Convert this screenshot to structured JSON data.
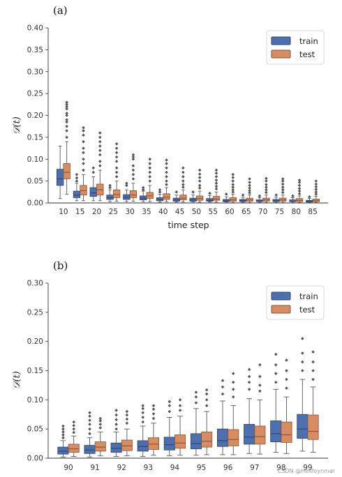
{
  "colors": {
    "train": "#4c6fb0",
    "test": "#d98c5f",
    "flier": "#555555",
    "whisker": "#555555"
  },
  "watermark": "CSDN @Hellfeynmar",
  "chart_data": [
    {
      "panel": "(a)",
      "type": "box",
      "ylabel": "𝒟(t)",
      "xlabel": "time step",
      "ylim": [
        0,
        0.4
      ],
      "yticks": [
        "0.00",
        "0.05",
        "0.10",
        "0.15",
        "0.20",
        "0.25",
        "0.30",
        "0.35",
        "0.40"
      ],
      "legend": {
        "position": "top-right",
        "entries": [
          "train",
          "test"
        ]
      },
      "categories": [
        "10",
        "15",
        "20",
        "25",
        "30",
        "35",
        "40",
        "45",
        "50",
        "55",
        "60",
        "65",
        "70",
        "75",
        "80",
        "85"
      ],
      "series": [
        {
          "name": "train",
          "boxes": [
            {
              "lo": 0.01,
              "q1": 0.04,
              "med": 0.055,
              "q3": 0.077,
              "hi": 0.13,
              "fliers": []
            },
            {
              "lo": 0.005,
              "q1": 0.012,
              "med": 0.018,
              "q3": 0.027,
              "hi": 0.045,
              "fliers": [
                0.05,
                0.057,
                0.065
              ]
            },
            {
              "lo": 0.005,
              "q1": 0.015,
              "med": 0.023,
              "q3": 0.035,
              "hi": 0.06,
              "fliers": [
                0.07,
                0.08
              ]
            },
            {
              "lo": 0.003,
              "q1": 0.008,
              "med": 0.012,
              "q3": 0.018,
              "hi": 0.03,
              "fliers": [
                0.035,
                0.04
              ]
            },
            {
              "lo": 0.003,
              "q1": 0.008,
              "med": 0.013,
              "q3": 0.019,
              "hi": 0.03,
              "fliers": [
                0.04,
                0.045
              ]
            },
            {
              "lo": 0.003,
              "q1": 0.007,
              "med": 0.011,
              "q3": 0.016,
              "hi": 0.027,
              "fliers": [
                0.03,
                0.035
              ]
            },
            {
              "lo": 0.002,
              "q1": 0.005,
              "med": 0.008,
              "q3": 0.012,
              "hi": 0.02,
              "fliers": [
                0.025,
                0.03
              ]
            },
            {
              "lo": 0.002,
              "q1": 0.004,
              "med": 0.007,
              "q3": 0.011,
              "hi": 0.018,
              "fliers": [
                0.025
              ]
            },
            {
              "lo": 0.002,
              "q1": 0.004,
              "med": 0.007,
              "q3": 0.011,
              "hi": 0.018,
              "fliers": [
                0.025
              ]
            },
            {
              "lo": 0.002,
              "q1": 0.004,
              "med": 0.006,
              "q3": 0.01,
              "hi": 0.017,
              "fliers": [
                0.022
              ]
            },
            {
              "lo": 0.002,
              "q1": 0.003,
              "med": 0.005,
              "q3": 0.008,
              "hi": 0.014,
              "fliers": [
                0.02
              ]
            },
            {
              "lo": 0.001,
              "q1": 0.003,
              "med": 0.005,
              "q3": 0.008,
              "hi": 0.013,
              "fliers": [
                0.018
              ]
            },
            {
              "lo": 0.001,
              "q1": 0.003,
              "med": 0.005,
              "q3": 0.007,
              "hi": 0.012,
              "fliers": [
                0.016
              ]
            },
            {
              "lo": 0.001,
              "q1": 0.003,
              "med": 0.005,
              "q3": 0.008,
              "hi": 0.013,
              "fliers": [
                0.018
              ]
            },
            {
              "lo": 0.001,
              "q1": 0.003,
              "med": 0.004,
              "q3": 0.007,
              "hi": 0.012,
              "fliers": [
                0.016
              ]
            },
            {
              "lo": 0.001,
              "q1": 0.002,
              "med": 0.004,
              "q3": 0.006,
              "hi": 0.01,
              "fliers": [
                0.014
              ]
            }
          ]
        },
        {
          "name": "test",
          "boxes": [
            {
              "lo": 0.02,
              "q1": 0.055,
              "med": 0.07,
              "q3": 0.09,
              "hi": 0.14,
              "fliers": [
                0.15,
                0.165,
                0.175,
                0.185,
                0.19,
                0.2,
                0.205,
                0.215,
                0.22,
                0.225,
                0.23
              ]
            },
            {
              "lo": 0.005,
              "q1": 0.018,
              "med": 0.028,
              "q3": 0.04,
              "hi": 0.065,
              "fliers": [
                0.075,
                0.09,
                0.1,
                0.115,
                0.125,
                0.14,
                0.155,
                0.165,
                0.172
              ]
            },
            {
              "lo": 0.005,
              "q1": 0.018,
              "med": 0.03,
              "q3": 0.043,
              "hi": 0.075,
              "fliers": [
                0.085,
                0.095,
                0.11,
                0.12,
                0.13,
                0.14,
                0.15,
                0.16
              ]
            },
            {
              "lo": 0.004,
              "q1": 0.012,
              "med": 0.019,
              "q3": 0.03,
              "hi": 0.05,
              "fliers": [
                0.06,
                0.07,
                0.08,
                0.095,
                0.105,
                0.115,
                0.125,
                0.135
              ]
            },
            {
              "lo": 0.004,
              "q1": 0.012,
              "med": 0.018,
              "q3": 0.028,
              "hi": 0.045,
              "fliers": [
                0.055,
                0.065,
                0.075,
                0.085,
                0.1,
                0.105,
                0.11
              ]
            },
            {
              "lo": 0.003,
              "q1": 0.01,
              "med": 0.016,
              "q3": 0.024,
              "hi": 0.04,
              "fliers": [
                0.05,
                0.06,
                0.07,
                0.08,
                0.09,
                0.1
              ]
            },
            {
              "lo": 0.003,
              "q1": 0.008,
              "med": 0.013,
              "q3": 0.021,
              "hi": 0.035,
              "fliers": [
                0.042,
                0.05,
                0.06,
                0.07,
                0.08,
                0.09,
                0.098
              ]
            },
            {
              "lo": 0.002,
              "q1": 0.007,
              "med": 0.011,
              "q3": 0.018,
              "hi": 0.03,
              "fliers": [
                0.036,
                0.042,
                0.05,
                0.06,
                0.07,
                0.08
              ]
            },
            {
              "lo": 0.002,
              "q1": 0.006,
              "med": 0.01,
              "q3": 0.016,
              "hi": 0.027,
              "fliers": [
                0.034,
                0.04,
                0.05,
                0.058,
                0.066,
                0.075
              ]
            },
            {
              "lo": 0.002,
              "q1": 0.006,
              "med": 0.009,
              "q3": 0.015,
              "hi": 0.025,
              "fliers": [
                0.032,
                0.038,
                0.045,
                0.052,
                0.06,
                0.068,
                0.075
              ]
            },
            {
              "lo": 0.001,
              "q1": 0.004,
              "med": 0.007,
              "q3": 0.012,
              "hi": 0.02,
              "fliers": [
                0.025,
                0.03,
                0.036,
                0.042,
                0.05,
                0.058,
                0.065
              ]
            },
            {
              "lo": 0.001,
              "q1": 0.004,
              "med": 0.007,
              "q3": 0.011,
              "hi": 0.018,
              "fliers": [
                0.023,
                0.028,
                0.034,
                0.04,
                0.047,
                0.055
              ]
            },
            {
              "lo": 0.001,
              "q1": 0.004,
              "med": 0.007,
              "q3": 0.011,
              "hi": 0.018,
              "fliers": [
                0.024,
                0.03,
                0.036,
                0.042,
                0.05,
                0.056
              ]
            },
            {
              "lo": 0.001,
              "q1": 0.004,
              "med": 0.007,
              "q3": 0.011,
              "hi": 0.018,
              "fliers": [
                0.024,
                0.03,
                0.036,
                0.043,
                0.05,
                0.055
              ]
            },
            {
              "lo": 0.001,
              "q1": 0.003,
              "med": 0.006,
              "q3": 0.01,
              "hi": 0.016,
              "fliers": [
                0.021,
                0.027,
                0.033,
                0.04,
                0.047,
                0.052
              ]
            },
            {
              "lo": 0.001,
              "q1": 0.003,
              "med": 0.005,
              "q3": 0.009,
              "hi": 0.015,
              "fliers": [
                0.02,
                0.025,
                0.031,
                0.037,
                0.043,
                0.05
              ]
            }
          ]
        }
      ]
    },
    {
      "panel": "(b)",
      "type": "box",
      "ylabel": "𝒟(t)",
      "xlabel": "",
      "ylim": [
        0,
        0.3
      ],
      "yticks": [
        "0.00",
        "0.05",
        "0.10",
        "0.15",
        "0.20",
        "0.25",
        "0.30"
      ],
      "legend": {
        "position": "top-right",
        "entries": [
          "train",
          "test"
        ]
      },
      "categories": [
        "90",
        "91",
        "92",
        "93",
        "94",
        "95",
        "96",
        "97",
        "98",
        "99"
      ],
      "series": [
        {
          "name": "train",
          "boxes": [
            {
              "lo": 0.002,
              "q1": 0.007,
              "med": 0.012,
              "q3": 0.019,
              "hi": 0.03,
              "fliers": [
                0.035,
                0.04,
                0.045,
                0.05,
                0.055
              ]
            },
            {
              "lo": 0.002,
              "q1": 0.008,
              "med": 0.014,
              "q3": 0.022,
              "hi": 0.035,
              "fliers": [
                0.042,
                0.05,
                0.058,
                0.065,
                0.072,
                0.078
              ]
            },
            {
              "lo": 0.003,
              "q1": 0.01,
              "med": 0.017,
              "q3": 0.026,
              "hi": 0.045,
              "fliers": [
                0.05,
                0.058,
                0.066,
                0.074,
                0.082
              ]
            },
            {
              "lo": 0.003,
              "q1": 0.012,
              "med": 0.02,
              "q3": 0.03,
              "hi": 0.055,
              "fliers": [
                0.062,
                0.07,
                0.078,
                0.085,
                0.09
              ]
            },
            {
              "lo": 0.004,
              "q1": 0.014,
              "med": 0.023,
              "q3": 0.036,
              "hi": 0.07,
              "fliers": [
                0.08,
                0.09,
                0.097
              ]
            },
            {
              "lo": 0.005,
              "q1": 0.016,
              "med": 0.025,
              "q3": 0.042,
              "hi": 0.085,
              "fliers": [
                0.095,
                0.105,
                0.113
              ]
            },
            {
              "lo": 0.006,
              "q1": 0.02,
              "med": 0.03,
              "q3": 0.05,
              "hi": 0.098,
              "fliers": [
                0.11,
                0.122,
                0.133
              ]
            },
            {
              "lo": 0.008,
              "q1": 0.024,
              "med": 0.036,
              "q3": 0.058,
              "hi": 0.102,
              "fliers": [
                0.118,
                0.13,
                0.14,
                0.152
              ]
            },
            {
              "lo": 0.01,
              "q1": 0.028,
              "med": 0.042,
              "q3": 0.064,
              "hi": 0.118,
              "fliers": [
                0.13,
                0.145,
                0.16,
                0.178
              ]
            },
            {
              "lo": 0.012,
              "q1": 0.034,
              "med": 0.05,
              "q3": 0.075,
              "hi": 0.135,
              "fliers": [
                0.15,
                0.165,
                0.18,
                0.205
              ]
            }
          ]
        },
        {
          "name": "test",
          "boxes": [
            {
              "lo": 0.003,
              "q1": 0.01,
              "med": 0.016,
              "q3": 0.024,
              "hi": 0.038,
              "fliers": [
                0.044,
                0.05,
                0.056,
                0.062
              ]
            },
            {
              "lo": 0.004,
              "q1": 0.012,
              "med": 0.019,
              "q3": 0.028,
              "hi": 0.045,
              "fliers": [
                0.052,
                0.058,
                0.064,
                0.068
              ]
            },
            {
              "lo": 0.004,
              "q1": 0.013,
              "med": 0.021,
              "q3": 0.031,
              "hi": 0.05,
              "fliers": [
                0.06,
                0.067,
                0.074,
                0.08
              ]
            },
            {
              "lo": 0.005,
              "q1": 0.015,
              "med": 0.024,
              "q3": 0.035,
              "hi": 0.06,
              "fliers": [
                0.068,
                0.076,
                0.084,
                0.09
              ]
            },
            {
              "lo": 0.005,
              "q1": 0.017,
              "med": 0.026,
              "q3": 0.04,
              "hi": 0.072,
              "fliers": [
                0.082,
                0.09,
                0.1
              ]
            },
            {
              "lo": 0.006,
              "q1": 0.019,
              "med": 0.029,
              "q3": 0.045,
              "hi": 0.08,
              "fliers": [
                0.09,
                0.1,
                0.11,
                0.117
              ]
            },
            {
              "lo": 0.006,
              "q1": 0.021,
              "med": 0.032,
              "q3": 0.049,
              "hi": 0.09,
              "fliers": [
                0.105,
                0.118,
                0.13,
                0.145
              ]
            },
            {
              "lo": 0.007,
              "q1": 0.024,
              "med": 0.037,
              "q3": 0.055,
              "hi": 0.1,
              "fliers": [
                0.115,
                0.125,
                0.14,
                0.16
              ]
            },
            {
              "lo": 0.008,
              "q1": 0.027,
              "med": 0.04,
              "q3": 0.062,
              "hi": 0.105,
              "fliers": [
                0.12,
                0.135,
                0.15,
                0.168
              ]
            },
            {
              "lo": 0.01,
              "q1": 0.032,
              "med": 0.046,
              "q3": 0.074,
              "hi": 0.122,
              "fliers": [
                0.135,
                0.15,
                0.165,
                0.182
              ]
            }
          ]
        }
      ]
    }
  ]
}
